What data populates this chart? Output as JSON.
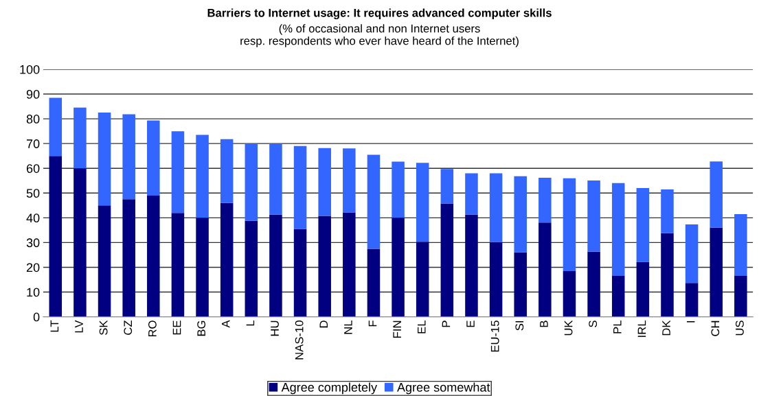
{
  "chart_data": {
    "type": "bar",
    "stacked": true,
    "title": "Barriers to Internet usage: It requires advanced computer skills",
    "subtitle": "(% of occasional and non Internet users\nresp. respondents who ever have heard of the Internet)",
    "categories": [
      "LT",
      "LV",
      "SK",
      "CZ",
      "RO",
      "EE",
      "BG",
      "A",
      "L",
      "HU",
      "NAS-10",
      "D",
      "NL",
      "F",
      "FIN",
      "EL",
      "P",
      "E",
      "EU-15",
      "SI",
      "B",
      "UK",
      "S",
      "PL",
      "IRL",
      "DK",
      "I",
      "CH",
      "US"
    ],
    "series": [
      {
        "name": "Agree completely",
        "color": "#000080",
        "values": [
          65,
          60,
          45,
          47.5,
          49,
          42,
          40,
          46,
          38.8,
          41.3,
          35.5,
          40.8,
          42.2,
          27.5,
          40,
          30.3,
          45.8,
          41.3,
          30.2,
          26,
          38.1,
          18.5,
          26.3,
          16.5,
          22.2,
          33.8,
          13.7,
          36,
          16.5
        ]
      },
      {
        "name": "Agree somewhat",
        "color": "#3366ff",
        "values": [
          23.5,
          24.5,
          37.5,
          34.3,
          30.3,
          33,
          33.5,
          25.8,
          31.2,
          28.7,
          33.5,
          27.4,
          25.8,
          38,
          22.7,
          31.9,
          13.9,
          16.7,
          27.8,
          30.8,
          18.1,
          37.5,
          28.8,
          37.5,
          29.8,
          17.7,
          23.6,
          26.8,
          25
        ]
      }
    ],
    "ylim": [
      0,
      100
    ],
    "yticks": [
      0,
      10,
      20,
      30,
      40,
      50,
      60,
      70,
      80,
      90,
      100
    ],
    "grid": "y",
    "legend": "bottom"
  }
}
